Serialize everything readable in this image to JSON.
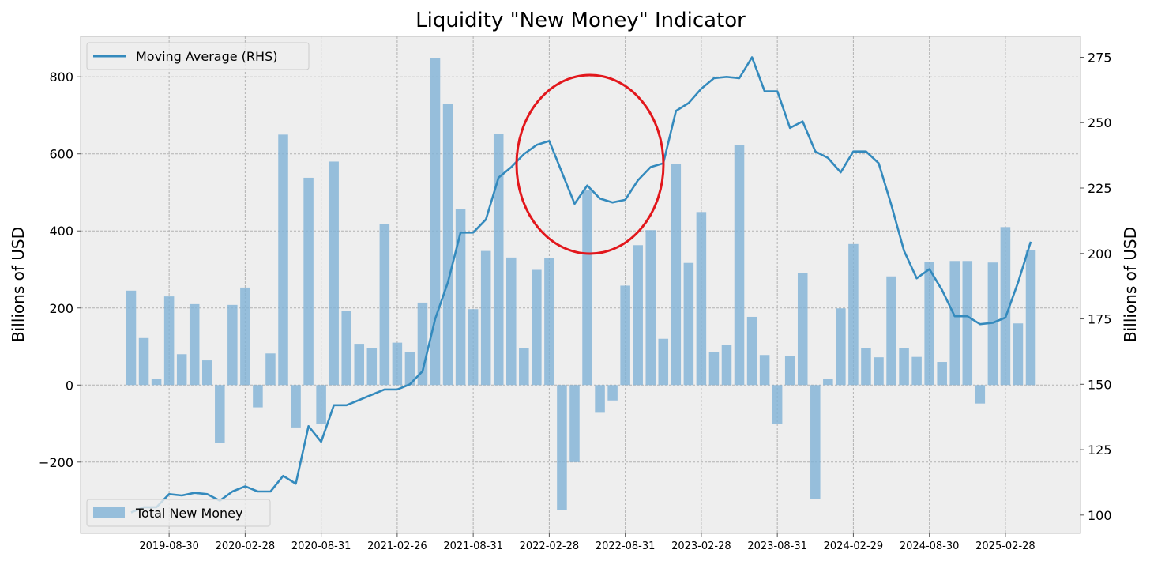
{
  "chart_data": {
    "type": "bar",
    "title": "Liquidity \"New Money\" Indicator",
    "xlabel": "",
    "ylabel": "Billions of USD",
    "ylabel_right": "Billions of USD",
    "ylim": [
      -385,
      905
    ],
    "ylim_right": [
      93,
      283
    ],
    "yticks": [
      -200,
      0,
      200,
      400,
      600,
      800
    ],
    "yticks_right": [
      100,
      125,
      150,
      175,
      200,
      225,
      250,
      275
    ],
    "xtick_labels": [
      "2019-08-30",
      "2020-02-28",
      "2020-08-31",
      "2021-02-26",
      "2021-08-31",
      "2022-02-28",
      "2022-08-31",
      "2023-02-28",
      "2023-08-31",
      "2024-02-29",
      "2024-08-30",
      "2025-02-28"
    ],
    "xtick_index": [
      3,
      9,
      15,
      21,
      27,
      33,
      39,
      45,
      51,
      57,
      63,
      69
    ],
    "grid": true,
    "series": [
      {
        "name": "Total New Money",
        "type": "bar",
        "axis": "left",
        "color": "#7fb2d6",
        "values": [
          245,
          122,
          15,
          230,
          80,
          210,
          64,
          -150,
          208,
          253,
          -58,
          82,
          650,
          -110,
          538,
          -100,
          580,
          193,
          107,
          96,
          418,
          110,
          86,
          214,
          848,
          730,
          456,
          197,
          348,
          652,
          331,
          96,
          299,
          330,
          -325,
          -200,
          507,
          -72,
          -40,
          258,
          363,
          402,
          120,
          574,
          317,
          449,
          86,
          105,
          623,
          177,
          78,
          -102,
          75,
          291,
          -295,
          15,
          199,
          366,
          95,
          72,
          282,
          95,
          73,
          320,
          60,
          322,
          322,
          -48,
          318,
          410,
          160,
          350
        ]
      },
      {
        "name": "Moving Average (RHS)",
        "type": "line",
        "axis": "right",
        "color": "#348abd",
        "values": [
          101,
          103,
          103,
          108,
          107.5,
          108.5,
          108,
          105.5,
          109,
          111,
          109,
          109,
          115,
          112,
          134,
          128,
          142,
          142,
          144,
          146,
          148,
          148,
          150,
          155,
          175,
          189,
          208,
          208,
          213,
          229,
          233,
          238,
          241.5,
          243,
          231,
          219,
          226,
          221,
          219.5,
          220.5,
          228,
          233,
          234.5,
          254.5,
          257.5,
          263,
          267,
          267.5,
          267,
          275,
          262,
          262,
          248,
          250.5,
          239,
          236.5,
          231,
          239,
          239,
          234.5,
          218.5,
          201,
          190.5,
          194,
          186,
          176,
          176,
          173,
          173.5,
          175.5,
          189,
          204.5
        ]
      }
    ],
    "annotation": {
      "shape": "ellipse",
      "color": "#e2171c"
    },
    "legend": {
      "top": "top-left",
      "bottom": "bottom-left"
    }
  }
}
